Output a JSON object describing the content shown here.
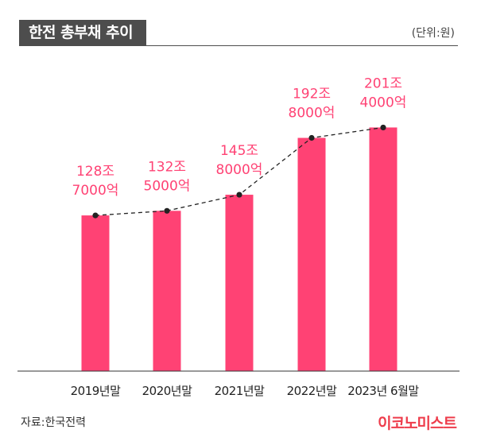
{
  "header": {
    "title": "한전 총부채 추이",
    "unit": "(단위:원)"
  },
  "footer": {
    "source": "자료:한국전력",
    "brand": "이코노미스트"
  },
  "chart_data": {
    "type": "bar",
    "title": "한전 총부채 추이",
    "unit_label": "(단위:원)",
    "categories": [
      "2019년말",
      "2020년말",
      "2021년말",
      "2022년말",
      "2023년 6월말"
    ],
    "values": [
      1287000,
      1325000,
      1458000,
      1928000,
      2014000
    ],
    "value_unit": "억원",
    "data_labels": [
      [
        "128조",
        "7000억"
      ],
      [
        "132조",
        "5000억"
      ],
      [
        "145조",
        "8000억"
      ],
      [
        "192조",
        "8000억"
      ],
      [
        "201조",
        "4000억"
      ]
    ],
    "ylim": [
      0,
      2700000
    ],
    "trend_line": "dashed",
    "colors": {
      "bar": "#ff4274",
      "label": "#ff4274",
      "trend": "#222222",
      "axis": "#333333"
    }
  }
}
